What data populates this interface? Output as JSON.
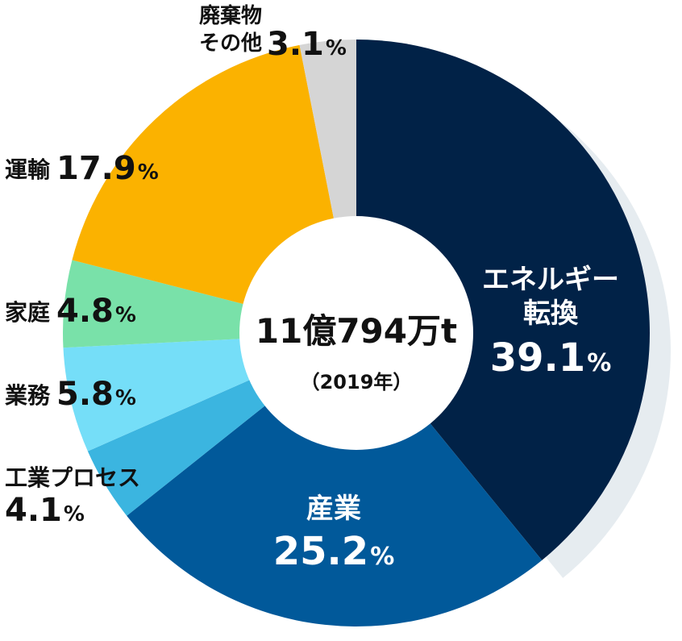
{
  "chart_data": {
    "type": "pie",
    "title": "",
    "center_label": {
      "total": "11億794万t",
      "year": "（2019年）"
    },
    "slices": [
      {
        "name": "エネルギー転換",
        "name_lines": [
          "エネルギー",
          "転換"
        ],
        "value": 39.1,
        "value_text": "39.1",
        "unit": "%",
        "color": "#012247"
      },
      {
        "name": "産業",
        "name_lines": [
          "産業"
        ],
        "value": 25.2,
        "value_text": "25.2",
        "unit": "%",
        "color": "#01599a"
      },
      {
        "name": "工業プロセス",
        "name_lines": [
          "工業プロセス"
        ],
        "value": 4.1,
        "value_text": "4.1",
        "unit": "%",
        "color": "#3bb5e0"
      },
      {
        "name": "業務",
        "name_lines": [
          "業務"
        ],
        "value": 5.8,
        "value_text": "5.8",
        "unit": "%",
        "color": "#75def8"
      },
      {
        "name": "家庭",
        "name_lines": [
          "家庭"
        ],
        "value": 4.8,
        "value_text": "4.8",
        "unit": "%",
        "color": "#79e1a9"
      },
      {
        "name": "運輸",
        "name_lines": [
          "運輸"
        ],
        "value": 17.9,
        "value_text": "17.9",
        "unit": "%",
        "color": "#fbb200"
      },
      {
        "name": "廃棄物その他",
        "name_lines": [
          "廃棄物",
          "その他"
        ],
        "value": 3.1,
        "value_text": "3.1",
        "unit": "%",
        "color": "#d5d5d5"
      }
    ],
    "colors": {
      "shadow": "#e6ecf0",
      "hole": "#ffffff",
      "center_text": "#111111"
    }
  }
}
